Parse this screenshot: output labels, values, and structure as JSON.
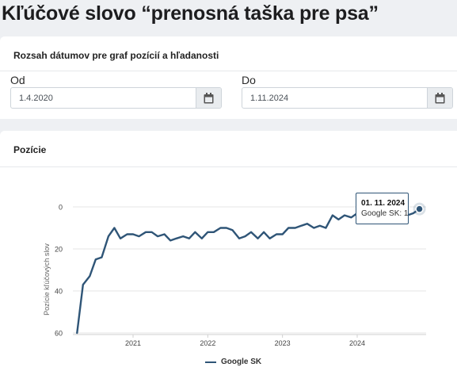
{
  "page": {
    "title": "Kľúčové slovo “prenosná taška pre psa”"
  },
  "date_range": {
    "header": "Rozsah dátumov pre graf pozícií a hľadanosti",
    "from": {
      "label": "Od",
      "value": "1.4.2020"
    },
    "to": {
      "label": "Do",
      "value": "1.11.2024"
    }
  },
  "chart_card": {
    "header": "Pozície"
  },
  "tooltip": {
    "date": "01. 11. 2024",
    "text": "Google SK: 1"
  },
  "colors": {
    "series": "#2f5577",
    "grid": "#e6e6e6"
  },
  "chart_data": {
    "type": "line",
    "title": "",
    "ylabel": "Pozície kľúčových slov",
    "xlabel": "",
    "y_reversed": true,
    "ylim": [
      0,
      60
    ],
    "y_ticks": [
      0,
      20,
      40,
      60
    ],
    "x_ticks": [
      "2021",
      "2022",
      "2023",
      "2024"
    ],
    "x_range": [
      2020.25,
      2024.833
    ],
    "legend": "bottom-center",
    "series": [
      {
        "name": "Google SK",
        "x": [
          2020.25,
          2020.33,
          2020.42,
          2020.5,
          2020.58,
          2020.67,
          2020.75,
          2020.83,
          2020.92,
          2021.0,
          2021.08,
          2021.17,
          2021.25,
          2021.33,
          2021.42,
          2021.5,
          2021.58,
          2021.67,
          2021.75,
          2021.83,
          2021.92,
          2022.0,
          2022.08,
          2022.17,
          2022.25,
          2022.33,
          2022.42,
          2022.5,
          2022.58,
          2022.67,
          2022.75,
          2022.83,
          2022.92,
          2023.0,
          2023.08,
          2023.17,
          2023.25,
          2023.33,
          2023.42,
          2023.5,
          2023.58,
          2023.67,
          2023.75,
          2023.83,
          2023.92,
          2024.0,
          2024.08,
          2024.17,
          2024.25,
          2024.33,
          2024.42,
          2024.5,
          2024.58,
          2024.67,
          2024.75,
          2024.833
        ],
        "y": [
          60,
          37,
          33,
          25,
          24,
          14,
          10,
          15,
          13,
          13,
          14,
          12,
          12,
          14,
          13,
          16,
          15,
          14,
          15,
          12,
          15,
          12,
          12,
          10,
          10,
          11,
          15,
          14,
          12,
          15,
          12,
          15,
          13,
          13,
          10,
          10,
          9,
          8,
          10,
          9,
          10,
          4,
          6,
          4,
          5,
          3,
          5,
          6,
          5,
          4,
          5,
          4,
          5,
          4,
          3,
          1
        ]
      }
    ]
  }
}
